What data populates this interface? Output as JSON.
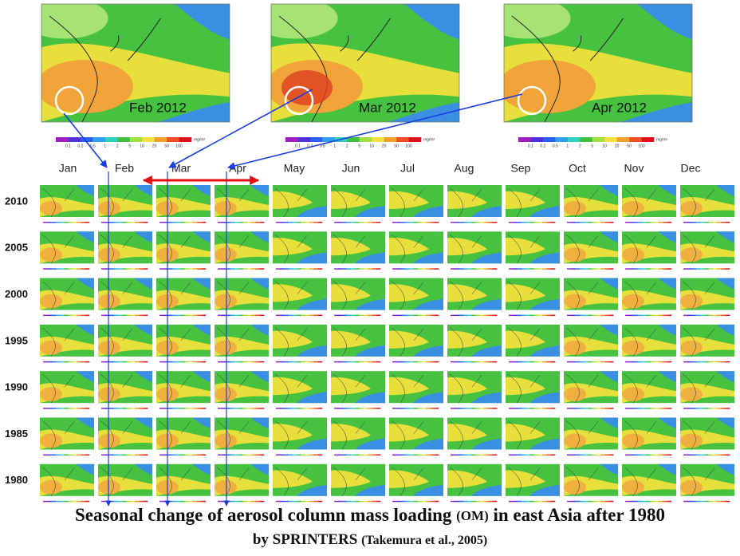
{
  "panels": [
    {
      "label": "Feb 2012"
    },
    {
      "label": "Mar 2012"
    },
    {
      "label": "Apr 2012"
    }
  ],
  "colorbar": {
    "ticks": [
      "0.1",
      "0.2",
      "0.5",
      "1",
      "2",
      "5",
      "10",
      "20",
      "50",
      "100"
    ],
    "unit": "mg/m²"
  },
  "months": [
    "Jan",
    "Feb",
    "Mar",
    "Apr",
    "May",
    "Jun",
    "Jul",
    "Aug",
    "Sep",
    "Oct",
    "Nov",
    "Dec"
  ],
  "years": [
    "2010",
    "2005",
    "2000",
    "1995",
    "1990",
    "1985",
    "1980"
  ],
  "caption": {
    "line1": [
      "Seasonal change of aerosol column mass loading ",
      "(OM)",
      " in east Asia after 1980"
    ],
    "line2": [
      "by SPRINTERS ",
      "(Takemura et al., 2005)"
    ]
  }
}
